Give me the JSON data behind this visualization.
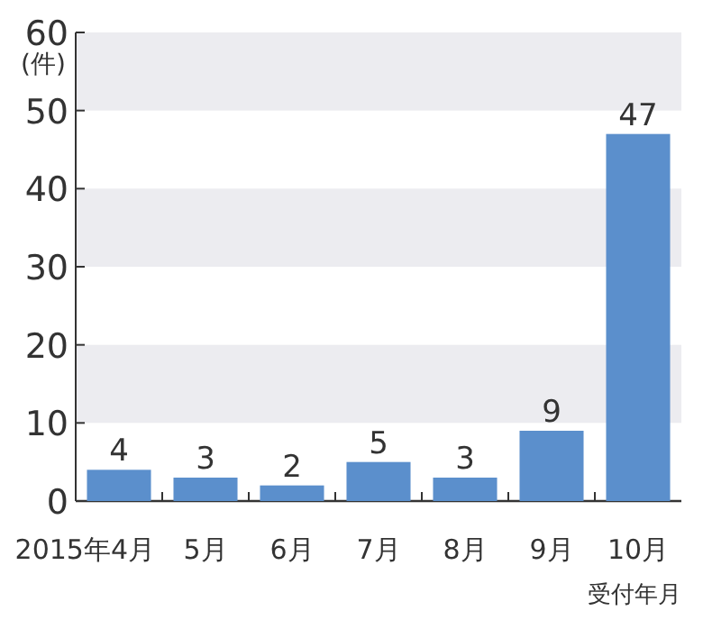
{
  "chart_data": {
    "type": "bar",
    "ylabel": "(件)",
    "xlabel": "受付年月",
    "categories": [
      "2015年4月",
      "5月",
      "6月",
      "7月",
      "8月",
      "9月",
      "10月"
    ],
    "values": [
      4,
      3,
      2,
      5,
      3,
      9,
      47
    ],
    "color": "#5b8fcc",
    "ylim": [
      0,
      60
    ],
    "yticks": [
      0,
      10,
      20,
      30,
      40,
      50,
      60
    ],
    "bands": [
      {
        "axis": "y",
        "from": 10,
        "to": 20,
        "color": "#ececf0"
      },
      {
        "axis": "y",
        "from": 30,
        "to": 40,
        "color": "#ececf0"
      },
      {
        "axis": "y",
        "from": 50,
        "to": 60,
        "color": "#ececf0"
      }
    ],
    "data_labels": true
  }
}
